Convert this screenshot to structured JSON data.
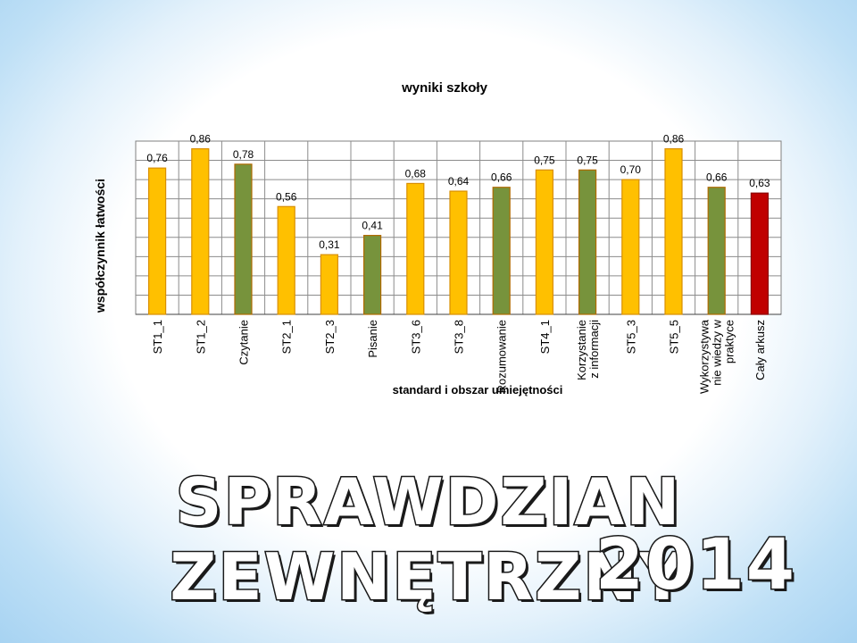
{
  "slide": {
    "heading_line1": "SPRAWDZIAN ZEWNĘTRZNY",
    "heading_line2": "2014"
  },
  "colors": {
    "yellow": "#FFC000",
    "yellow_border": "#D98F00",
    "green": "#77933C",
    "green_border": "#B06A00",
    "red": "#C00000",
    "red_border": "#8B0000"
  },
  "chart_data": {
    "type": "bar",
    "title": "wyniki szkoły",
    "xlabel": "standard  i obszar umiejętności",
    "ylabel": "współczynnik łatwości",
    "ylim": [
      0,
      0.9
    ],
    "grid": true,
    "legend": "none",
    "categories": [
      "ST1_1",
      "ST1_2",
      "Czytanie",
      "ST2_1",
      "ST2_3",
      "Pisanie",
      "ST3_6",
      "ST3_8",
      "Rozumowanie",
      "ST4_1",
      "Korzystanie z informacji",
      "ST5_3",
      "ST5_5",
      "Wykorzystywanie wiedzy w praktyce",
      "Cały arkusz"
    ],
    "category_lines": [
      [
        "ST1_1"
      ],
      [
        "ST1_2"
      ],
      [
        "Czytanie"
      ],
      [
        "ST2_1"
      ],
      [
        "ST2_3"
      ],
      [
        "Pisanie"
      ],
      [
        "ST3_6"
      ],
      [
        "ST3_8"
      ],
      [
        "Rozumowanie"
      ],
      [
        "ST4_1"
      ],
      [
        "Korzystanie",
        "z informacji"
      ],
      [
        "ST5_3"
      ],
      [
        "ST5_5"
      ],
      [
        "Wykorzystywa",
        "nie wiedzy w",
        "praktyce"
      ],
      [
        "Cały arkusz"
      ]
    ],
    "values": [
      0.76,
      0.86,
      0.78,
      0.56,
      0.31,
      0.41,
      0.68,
      0.64,
      0.66,
      0.75,
      0.75,
      0.7,
      0.86,
      0.66,
      0.63
    ],
    "value_labels": [
      "0,76",
      "0,86",
      "0,78",
      "0,56",
      "0,31",
      "0,41",
      "0,68",
      "0,64",
      "0,66",
      "0,75",
      "0,75",
      "0,70",
      "0,86",
      "0,66",
      "0,63"
    ],
    "bar_colors": [
      "yellow",
      "yellow",
      "green",
      "yellow",
      "yellow",
      "green",
      "yellow",
      "yellow",
      "green",
      "yellow",
      "green",
      "yellow",
      "yellow",
      "green",
      "red"
    ]
  }
}
